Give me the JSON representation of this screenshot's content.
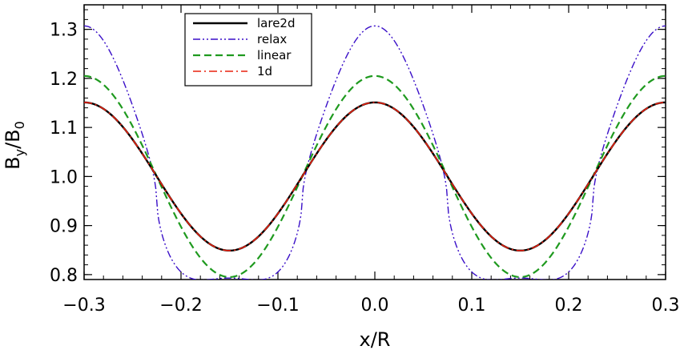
{
  "chart_data": {
    "type": "line",
    "title": "",
    "xlabel": "x/R",
    "ylabel_base": "B",
    "ylabel_sub1": "y",
    "ylabel_mid": "/B",
    "ylabel_sub2": "0",
    "xlim": [
      -0.3,
      0.3
    ],
    "ylim": [
      0.79,
      1.35
    ],
    "xticks": [
      {
        "value": -0.3,
        "label": "−0.3"
      },
      {
        "value": -0.2,
        "label": "−0.2"
      },
      {
        "value": -0.1,
        "label": "−0.1"
      },
      {
        "value": 0.0,
        "label": "0.0"
      },
      {
        "value": 0.1,
        "label": "0.1"
      },
      {
        "value": 0.2,
        "label": "0.2"
      },
      {
        "value": 0.3,
        "label": "0.3"
      }
    ],
    "yticks": [
      {
        "value": 0.8,
        "label": "0.8"
      },
      {
        "value": 0.9,
        "label": "0.9"
      },
      {
        "value": 1.0,
        "label": "1.0"
      },
      {
        "value": 1.1,
        "label": "1.1"
      },
      {
        "value": 1.2,
        "label": "1.2"
      },
      {
        "value": 1.3,
        "label": "1.3"
      }
    ],
    "legend_position": "top-left",
    "series": [
      {
        "name": "lare2d",
        "color": "#000000",
        "dash": "solid",
        "mean": 1.0,
        "amplitude": 0.151,
        "harmonic2": 0.0,
        "period": 0.3,
        "exponent": 1
      },
      {
        "name": "relax",
        "color": "#3a0fc8",
        "dash": "dash-dot-dot",
        "mean": 1.0,
        "amplitude": 0.257,
        "harmonic2": 0.05,
        "period": 0.3,
        "exponent": 0.6
      },
      {
        "name": "linear",
        "color": "#1f9a1f",
        "dash": "dashed",
        "mean": 1.0,
        "amplitude": 0.205,
        "harmonic2": 0.0,
        "period": 0.3,
        "exponent": 1
      },
      {
        "name": "1d",
        "color": "#e8210f",
        "dash": "dash-dot",
        "mean": 1.0,
        "amplitude": 0.151,
        "harmonic2": 0.0,
        "period": 0.3,
        "exponent": 1
      }
    ]
  }
}
